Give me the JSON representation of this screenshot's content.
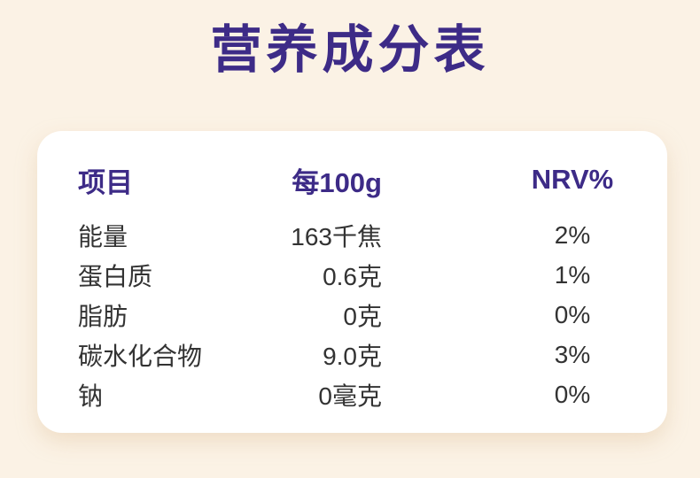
{
  "page": {
    "background_color": "#fbf2e5",
    "card_color": "#ffffff",
    "accent_color": "#3d2b87",
    "body_text_color": "#333333"
  },
  "title": "营养成分表",
  "table": {
    "headers": {
      "item": "项目",
      "per_100g": "每100g",
      "nrv": "NRV%"
    },
    "rows": [
      {
        "item": "能量",
        "per_100g": "163千焦",
        "nrv": "2%"
      },
      {
        "item": "蛋白质",
        "per_100g": "0.6克",
        "nrv": "1%"
      },
      {
        "item": "脂肪",
        "per_100g": "0克",
        "nrv": "0%"
      },
      {
        "item": "碳水化合物",
        "per_100g": "9.0克",
        "nrv": "3%"
      },
      {
        "item": "钠",
        "per_100g": "0毫克",
        "nrv": "0%"
      }
    ]
  }
}
